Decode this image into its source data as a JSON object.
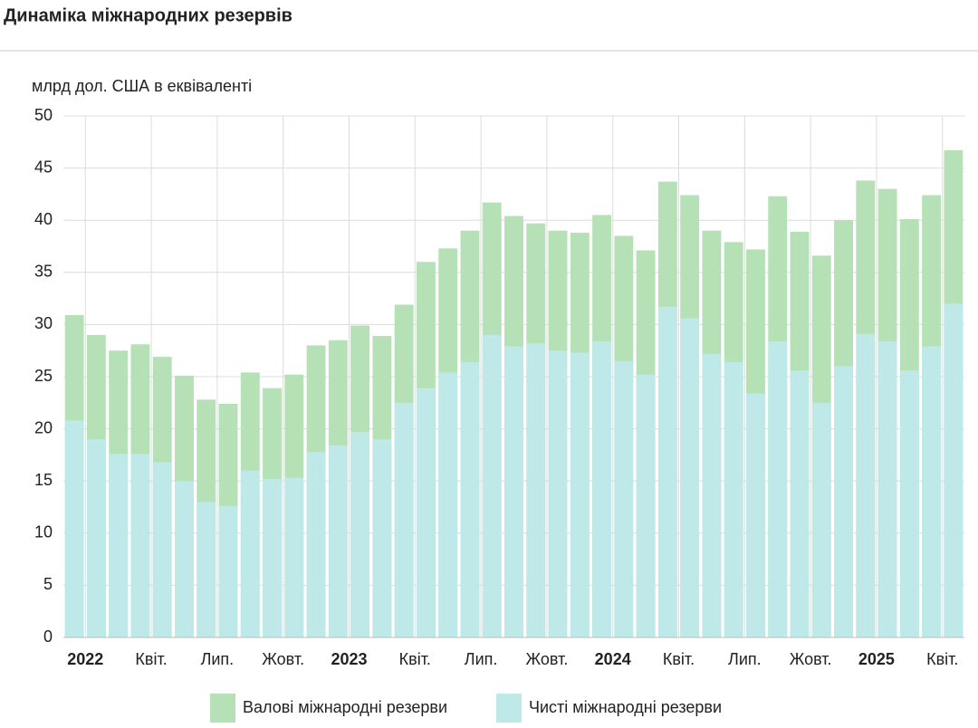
{
  "chart_data": {
    "type": "bar",
    "mode": "overlap",
    "title": "Динаміка міжнародних резервів",
    "y_label": "млрд дол. США в еквіваленті",
    "categories": [
      "2022",
      null,
      null,
      "Квіт.",
      null,
      null,
      "Лип.",
      null,
      null,
      "Жовт.",
      null,
      null,
      "2023",
      null,
      null,
      "Квіт.",
      null,
      null,
      "Лип.",
      null,
      null,
      "Жовт.",
      null,
      null,
      "2024",
      null,
      null,
      "Квіт.",
      null,
      null,
      "Лип.",
      null,
      null,
      "Жовт.",
      null,
      null,
      "2025",
      null,
      null,
      "Квіт.",
      null
    ],
    "series": [
      {
        "name": "Валові міжнародні резерви",
        "color": "#b6e0b6",
        "values": [
          30.9,
          29.0,
          27.5,
          28.1,
          26.9,
          25.1,
          22.8,
          22.4,
          25.4,
          23.9,
          25.2,
          28.0,
          28.5,
          29.9,
          28.9,
          31.9,
          36.0,
          37.3,
          39.0,
          41.7,
          40.4,
          39.7,
          39.0,
          38.8,
          40.5,
          38.5,
          37.1,
          43.7,
          42.4,
          39.0,
          37.9,
          37.2,
          42.3,
          38.9,
          36.6,
          40.0,
          43.8,
          43.0,
          40.1,
          42.4,
          46.7
        ]
      },
      {
        "name": "Чисті міжнародні резерви",
        "color": "#bfe9e9",
        "values": [
          20.8,
          19.0,
          17.6,
          17.6,
          16.8,
          15.0,
          13.0,
          12.6,
          16.0,
          15.2,
          15.3,
          17.8,
          18.4,
          19.7,
          19.0,
          22.5,
          23.9,
          25.4,
          26.4,
          29.0,
          27.9,
          28.2,
          27.5,
          27.3,
          28.4,
          26.5,
          25.2,
          31.7,
          30.6,
          27.2,
          26.4,
          23.4,
          28.4,
          25.6,
          22.5,
          26.0,
          29.1,
          28.4,
          25.6,
          27.9,
          32.0
        ]
      }
    ],
    "ylim": [
      0,
      50
    ],
    "yticks": [
      0,
      5,
      10,
      15,
      20,
      25,
      30,
      35,
      40,
      45,
      50
    ],
    "grid": true
  }
}
